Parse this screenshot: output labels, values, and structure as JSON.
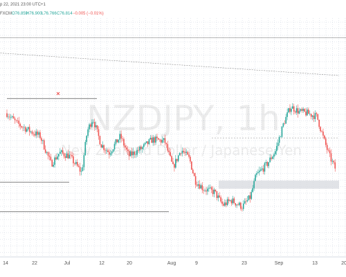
{
  "header": {
    "date_text": "p 22, 2021 23:00 UTC+1",
    "symbol_text": "FXCM",
    "open_text": "O76.859",
    "high_text": "H76.900",
    "low_text": "L76.766",
    "close_text": "C76.814",
    "change_text": "−0.005 (−0.01%)"
  },
  "watermark": {
    "symbol": "NZDJPY, 1h",
    "description": "New Zealand Dollar / Japanese Yen"
  },
  "colors": {
    "up": "#26a69a",
    "down": "#ef5350",
    "grid": "#c8d0dc",
    "level_line": "#555555",
    "marker": "#ef5350",
    "zone": "#d9dce1"
  },
  "chart_data": {
    "type": "candlestick",
    "title": "",
    "xlabel": "",
    "ylabel": "",
    "x_tick_labels": [
      "14",
      "22",
      "Jul",
      "12",
      "20",
      "Aug",
      "9",
      "23",
      "Sep",
      "13",
      "20"
    ],
    "grid": true,
    "y_axis_visible": false,
    "price_path": [
      [
        0,
        0.66
      ],
      [
        0.07,
        0.6
      ],
      [
        0.17,
        0.55
      ],
      [
        0.24,
        0.52
      ],
      [
        0.32,
        0.35
      ],
      [
        0.38,
        0.42
      ],
      [
        0.45,
        0.4
      ],
      [
        0.54,
        0.3
      ],
      [
        0.58,
        0.55
      ],
      [
        0.62,
        0.63
      ],
      [
        0.68,
        0.47
      ],
      [
        0.74,
        0.42
      ],
      [
        0.82,
        0.52
      ],
      [
        0.88,
        0.4
      ],
      [
        0.98,
        0.45
      ],
      [
        1.05,
        0.5
      ],
      [
        1.14,
        0.49
      ],
      [
        1.2,
        0.33
      ],
      [
        1.26,
        0.44
      ],
      [
        1.32,
        0.38
      ],
      [
        1.36,
        0.25
      ],
      [
        1.42,
        0.2
      ],
      [
        1.5,
        0.18
      ],
      [
        1.56,
        0.1
      ],
      [
        1.62,
        0.13
      ],
      [
        1.7,
        0.09
      ],
      [
        1.76,
        0.15
      ],
      [
        1.8,
        0.28
      ],
      [
        1.88,
        0.35
      ],
      [
        1.94,
        0.43
      ],
      [
        2.0,
        0.6
      ],
      [
        2.05,
        0.7
      ],
      [
        2.11,
        0.67
      ],
      [
        2.17,
        0.66
      ],
      [
        2.24,
        0.64
      ],
      [
        2.29,
        0.5
      ],
      [
        2.33,
        0.4
      ],
      [
        2.38,
        0.31
      ]
    ],
    "horizontal_levels": [
      {
        "x": [
          0,
          0.65
        ],
        "y": 0.75
      },
      {
        "x": [
          -0.1,
          0.45
        ],
        "y": 0.24
      },
      {
        "x": [
          -0.1,
          1.17
        ],
        "y": 0.06
      }
    ],
    "trendline": {
      "x": [
        -0.1,
        2.4
      ],
      "y": [
        1.03,
        0.89
      ]
    },
    "top_line": {
      "y": 1.12
    },
    "dotted_level": {
      "x": [
        1.48,
        2.4
      ],
      "y": 0.51
    },
    "zone": {
      "x": [
        1.53,
        2.4
      ],
      "y": [
        0.2,
        0.25
      ]
    },
    "marker": {
      "x": 0.37,
      "y": 0.78
    }
  }
}
